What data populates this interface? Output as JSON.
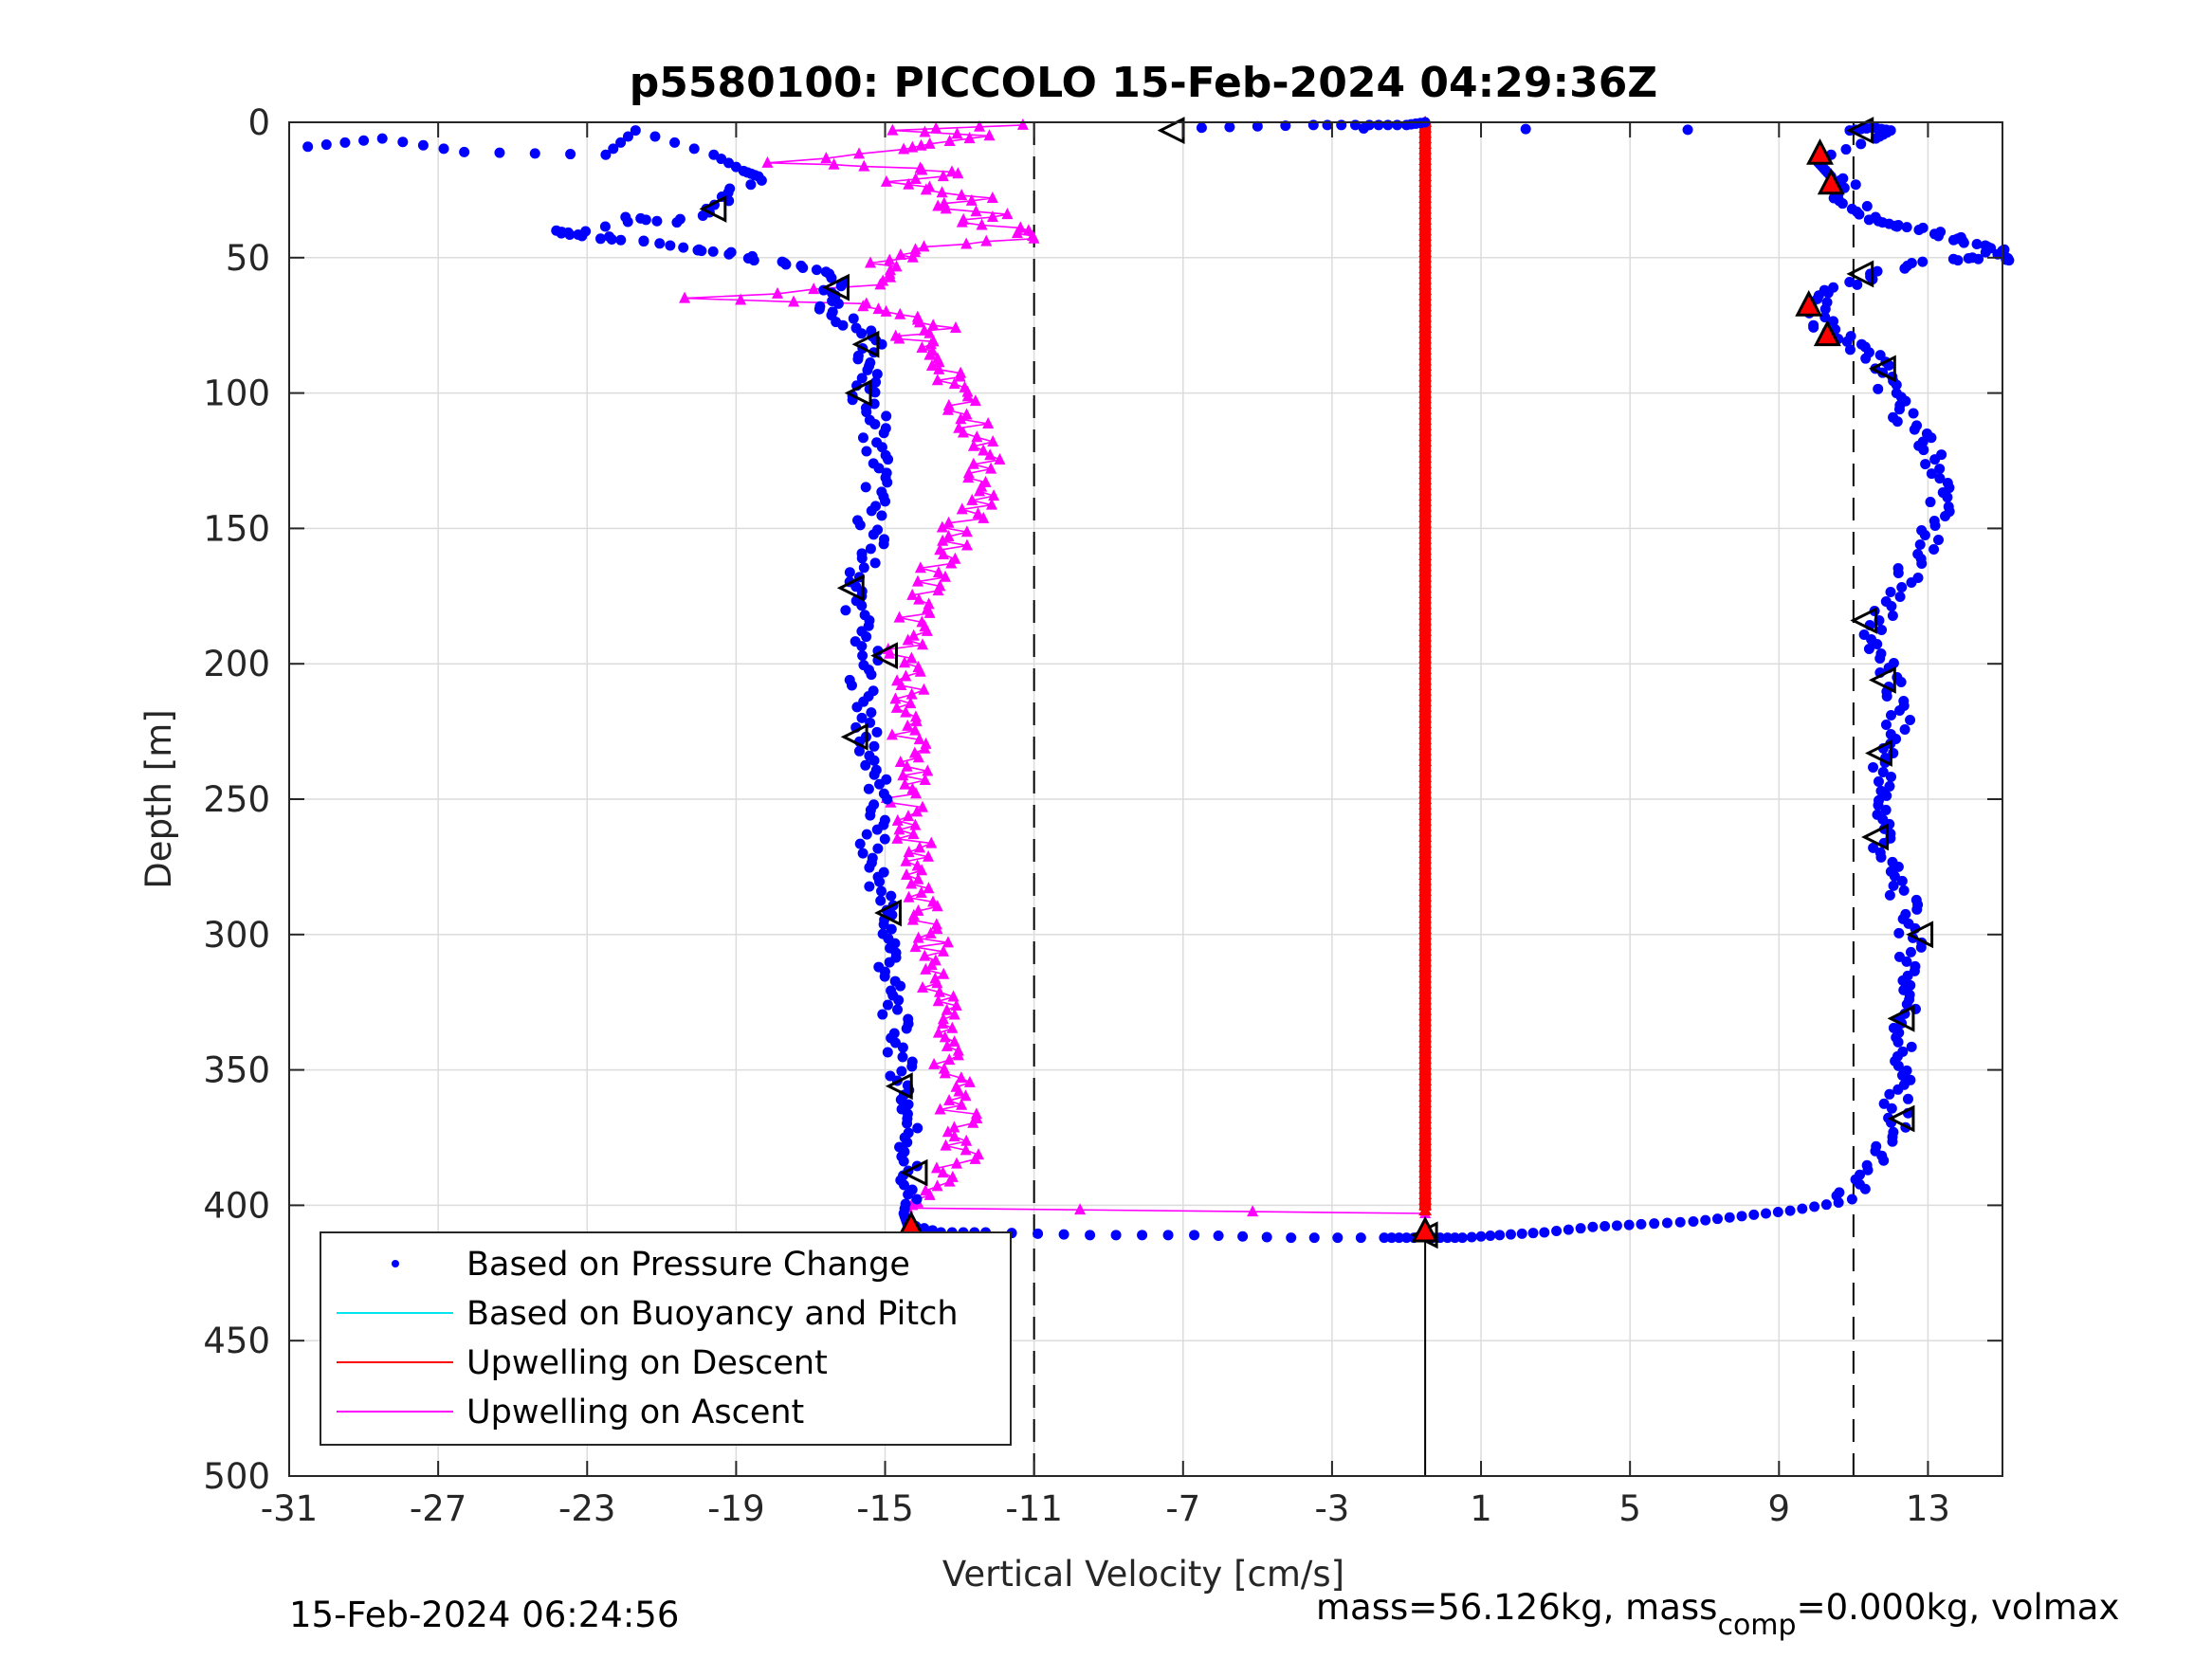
{
  "figure": {
    "footer_left": "15-Feb-2024 06:24:56",
    "footer_right_main": "mass=56.126kg, mass",
    "footer_right_sub": "comp",
    "footer_right_tail": "=0.000kg, volmax"
  },
  "chart_data": {
    "type": "scatter",
    "title": "p5580100: PICCOLO 15-Feb-2024 04:29:36Z",
    "xlabel": "Vertical Velocity [cm/s]",
    "ylabel": "Depth [m]",
    "xlim": [
      -31,
      15
    ],
    "ylim": [
      500,
      0
    ],
    "y_reversed": true,
    "xticks": [
      "-31",
      "-27",
      "-23",
      "-19",
      "-15",
      "-11",
      "-7",
      "-3",
      "1",
      "5",
      "9",
      "13"
    ],
    "yticks": [
      "0",
      "50",
      "100",
      "150",
      "200",
      "250",
      "300",
      "350",
      "400",
      "450",
      "500"
    ],
    "grid": true,
    "legend_position": "bottom-left",
    "legend": [
      {
        "label": "Based on Pressure Change",
        "style": "dot",
        "color": "#0000ff"
      },
      {
        "label": "Based on Buoyancy and Pitch",
        "style": "line",
        "color": "#00e5ee"
      },
      {
        "label": "Upwelling on Descent",
        "style": "line",
        "color": "#ff0000"
      },
      {
        "label": "Upwelling on Ascent",
        "style": "line",
        "color": "#ff00ff"
      }
    ],
    "reference_lines": {
      "dashed_x": [
        -11,
        11
      ],
      "solid_x": [
        -0.5
      ],
      "solid_x_depth_range": [
        400,
        500
      ]
    },
    "series": [
      {
        "name": "Based on Pressure Change",
        "color": "#0000ff",
        "marker": "dot",
        "ascent_profile": [
          [
            -30.5,
            9
          ],
          [
            -28.5,
            6
          ],
          [
            -26.3,
            11
          ],
          [
            -22.5,
            12
          ],
          [
            -21.7,
            3
          ],
          [
            -19.6,
            12
          ],
          [
            -18.8,
            18
          ],
          [
            -18.4,
            20
          ],
          [
            -19.4,
            26
          ],
          [
            -19.6,
            32
          ],
          [
            -20.6,
            37
          ],
          [
            -21.7,
            35
          ],
          [
            -23.4,
            42
          ],
          [
            -23.6,
            40
          ],
          [
            -22.3,
            43
          ],
          [
            -21.3,
            44
          ],
          [
            -20,
            47
          ],
          [
            -19.2,
            48
          ],
          [
            -18.2,
            51
          ],
          [
            -17.1,
            53
          ],
          [
            -16.4,
            56
          ],
          [
            -16.4,
            62
          ],
          [
            -16.6,
            66
          ],
          [
            -16.4,
            70
          ],
          [
            -15.9,
            75
          ],
          [
            -15.4,
            79
          ],
          [
            -15.4,
            85
          ],
          [
            -15.4,
            90
          ],
          [
            -15.6,
            96
          ],
          [
            -15.6,
            101
          ],
          [
            -15.3,
            107
          ],
          [
            -15.2,
            113
          ],
          [
            -15.3,
            120
          ],
          [
            -15.1,
            126
          ],
          [
            -15.2,
            133
          ],
          [
            -15.3,
            140
          ],
          [
            -15.4,
            147
          ],
          [
            -15.3,
            154
          ],
          [
            -15.5,
            161
          ],
          [
            -15.7,
            168
          ],
          [
            -15.8,
            175
          ],
          [
            -15.7,
            182
          ],
          [
            -15.6,
            190
          ],
          [
            -15.5,
            197
          ],
          [
            -15.6,
            204
          ],
          [
            -15.6,
            212
          ],
          [
            -15.4,
            220
          ],
          [
            -15.6,
            227
          ],
          [
            -15.4,
            234
          ],
          [
            -15.2,
            241
          ],
          [
            -15.3,
            248
          ],
          [
            -15.2,
            256
          ],
          [
            -15.3,
            263
          ],
          [
            -15.5,
            270
          ],
          [
            -15.2,
            277
          ],
          [
            -15.1,
            284
          ],
          [
            -15,
            291
          ],
          [
            -14.9,
            298
          ],
          [
            -14.8,
            305
          ],
          [
            -14.9,
            312
          ],
          [
            -14.9,
            319
          ],
          [
            -14.8,
            326
          ],
          [
            -14.7,
            333
          ],
          [
            -14.6,
            340
          ],
          [
            -14.6,
            347
          ],
          [
            -14.5,
            354
          ],
          [
            -14.4,
            361
          ],
          [
            -14.4,
            368
          ],
          [
            -14.3,
            375
          ],
          [
            -14.4,
            382
          ],
          [
            -14.4,
            389
          ],
          [
            -14.4,
            396
          ],
          [
            -14.5,
            403
          ],
          [
            -14.4,
            407
          ],
          [
            -13.5,
            410
          ],
          [
            -12.3,
            410
          ],
          [
            -9.5,
            411
          ],
          [
            -6.7,
            411
          ],
          [
            -4.1,
            412
          ],
          [
            -1.6,
            412
          ],
          [
            -0.8,
            412
          ]
        ],
        "descent_profile": [
          [
            -0.5,
            0
          ],
          [
            -1,
            1
          ],
          [
            -2,
            1
          ],
          [
            -3.5,
            1
          ],
          [
            -6.5,
            2
          ],
          [
            10.9,
            3
          ],
          [
            11.5,
            2
          ],
          [
            12,
            3
          ],
          [
            11.6,
            6
          ],
          [
            10,
            14
          ],
          [
            10.2,
            17
          ],
          [
            10.4,
            20
          ],
          [
            10.8,
            23
          ],
          [
            10.7,
            28
          ],
          [
            11.3,
            32
          ],
          [
            11.6,
            36
          ],
          [
            12.2,
            38
          ],
          [
            12.8,
            39
          ],
          [
            13.6,
            42
          ],
          [
            14.1,
            44
          ],
          [
            14.7,
            46
          ],
          [
            14.8,
            48
          ],
          [
            15,
            51
          ],
          [
            14.2,
            50
          ],
          [
            12.8,
            52
          ],
          [
            11.4,
            56
          ],
          [
            11,
            60
          ],
          [
            10.1,
            64
          ],
          [
            9.9,
            69
          ],
          [
            10.2,
            75
          ],
          [
            10.5,
            78
          ],
          [
            11,
            82
          ],
          [
            11.5,
            86
          ],
          [
            11.8,
            91
          ],
          [
            11.9,
            97
          ],
          [
            12.1,
            103
          ],
          [
            12.4,
            109
          ],
          [
            12.7,
            115
          ],
          [
            13,
            121
          ],
          [
            13.3,
            128
          ],
          [
            13.4,
            135
          ],
          [
            13.4,
            142
          ],
          [
            13.1,
            149
          ],
          [
            12.9,
            156
          ],
          [
            12.6,
            163
          ],
          [
            12.4,
            170
          ],
          [
            12.1,
            177
          ],
          [
            11.6,
            184
          ],
          [
            11.5,
            191
          ],
          [
            11.8,
            198
          ],
          [
            11.9,
            205
          ],
          [
            12.1,
            212
          ],
          [
            12.2,
            219
          ],
          [
            12.1,
            226
          ],
          [
            11.9,
            233
          ],
          [
            11.8,
            240
          ],
          [
            11.7,
            247
          ],
          [
            11.8,
            254
          ],
          [
            11.9,
            261
          ],
          [
            11.8,
            268
          ],
          [
            11.9,
            275
          ],
          [
            12.2,
            282
          ],
          [
            12.4,
            289
          ],
          [
            12.6,
            296
          ],
          [
            12.5,
            303
          ],
          [
            12.6,
            310
          ],
          [
            12.5,
            317
          ],
          [
            12.5,
            324
          ],
          [
            12.4,
            331
          ],
          [
            12.3,
            338
          ],
          [
            12.3,
            345
          ],
          [
            12.3,
            352
          ],
          [
            12.1,
            359
          ],
          [
            12.2,
            366
          ],
          [
            12.1,
            373
          ],
          [
            11.7,
            380
          ],
          [
            11.3,
            387
          ],
          [
            11,
            394
          ],
          [
            10.6,
            399
          ],
          [
            9.3,
            402
          ],
          [
            8,
            404
          ],
          [
            6.7,
            406
          ],
          [
            5.3,
            407
          ],
          [
            4,
            408
          ],
          [
            2.7,
            410
          ],
          [
            1.5,
            411
          ],
          [
            0.5,
            412
          ],
          [
            -0.3,
            412
          ]
        ]
      },
      {
        "name": "Upwelling on Descent",
        "color": "#ff0000",
        "marker": "triangle",
        "x": -0.5,
        "depth_range": [
          0,
          402
        ]
      },
      {
        "name": "Upwelling on Ascent",
        "color": "#ff00ff",
        "marker": "triangle",
        "profile": [
          [
            -11.3,
            1
          ],
          [
            -14.8,
            3
          ],
          [
            -12.2,
            5
          ],
          [
            -13.8,
            8
          ],
          [
            -14.5,
            10
          ],
          [
            -18.1,
            15
          ],
          [
            -14.2,
            17
          ],
          [
            -13.1,
            19
          ],
          [
            -14.6,
            22
          ],
          [
            -13.4,
            25
          ],
          [
            -12.6,
            28
          ],
          [
            -13.5,
            31
          ],
          [
            -12.2,
            34
          ],
          [
            -13.2,
            37
          ],
          [
            -11.1,
            40
          ],
          [
            -11.3,
            43
          ],
          [
            -13.6,
            46
          ],
          [
            -14.2,
            49
          ],
          [
            -15.3,
            52
          ],
          [
            -14.6,
            56
          ],
          [
            -14.8,
            60
          ],
          [
            -19.9,
            65
          ],
          [
            -15.6,
            67
          ],
          [
            -14.8,
            70
          ],
          [
            -13.8,
            73
          ],
          [
            -13.2,
            76
          ],
          [
            -14.4,
            79
          ],
          [
            -13.7,
            82
          ],
          [
            -13.4,
            86
          ],
          [
            -13.6,
            90
          ],
          [
            -13.3,
            94
          ],
          [
            -13.1,
            98
          ],
          [
            -13,
            103
          ],
          [
            -12.8,
            108
          ],
          [
            -12.6,
            113
          ],
          [
            -12.5,
            118
          ],
          [
            -12.4,
            123
          ],
          [
            -12.3,
            128
          ],
          [
            -12.3,
            133
          ],
          [
            -12.5,
            138
          ],
          [
            -12.7,
            143
          ],
          [
            -12.9,
            148
          ],
          [
            -13.1,
            153
          ],
          [
            -13.3,
            158
          ],
          [
            -13.5,
            163
          ],
          [
            -13.7,
            168
          ],
          [
            -13.9,
            173
          ],
          [
            -14.1,
            178
          ],
          [
            -14.2,
            183
          ],
          [
            -14.3,
            188
          ],
          [
            -14.4,
            193
          ],
          [
            -14.5,
            198
          ],
          [
            -14.5,
            203
          ],
          [
            -14.4,
            208
          ],
          [
            -14.3,
            213
          ],
          [
            -14.4,
            218
          ],
          [
            -14.4,
            223
          ],
          [
            -14.3,
            228
          ],
          [
            -14.2,
            233
          ],
          [
            -14.3,
            238
          ],
          [
            -14.4,
            243
          ],
          [
            -14.5,
            248
          ],
          [
            -14.4,
            253
          ],
          [
            -14.3,
            258
          ],
          [
            -14.3,
            263
          ],
          [
            -14.2,
            268
          ],
          [
            -14.1,
            273
          ],
          [
            -14.1,
            278
          ],
          [
            -14.2,
            283
          ],
          [
            -14.1,
            288
          ],
          [
            -14,
            293
          ],
          [
            -13.9,
            298
          ],
          [
            -13.8,
            303
          ],
          [
            -13.8,
            308
          ],
          [
            -13.7,
            313
          ],
          [
            -13.6,
            318
          ],
          [
            -13.5,
            323
          ],
          [
            -13.4,
            328
          ],
          [
            -13.3,
            333
          ],
          [
            -13.3,
            338
          ],
          [
            -13.2,
            343
          ],
          [
            -13.3,
            348
          ],
          [
            -13.2,
            353
          ],
          [
            -13.1,
            358
          ],
          [
            -13.1,
            363
          ],
          [
            -13,
            368
          ],
          [
            -13,
            373
          ],
          [
            -12.9,
            378
          ],
          [
            -13,
            383
          ],
          [
            -13.2,
            388
          ],
          [
            -13.5,
            393
          ],
          [
            -14,
            398
          ],
          [
            -14.4,
            401
          ],
          [
            -0.5,
            403
          ]
        ]
      }
    ],
    "markers": {
      "open_triangles": [
        [
          -7.3,
          3
        ],
        [
          11.2,
          3
        ],
        [
          -19.6,
          32
        ],
        [
          11.2,
          56
        ],
        [
          -16.3,
          61
        ],
        [
          -15.5,
          82
        ],
        [
          11.8,
          91
        ],
        [
          -15.7,
          100
        ],
        [
          -15.9,
          172
        ],
        [
          11.3,
          184
        ],
        [
          -15,
          197
        ],
        [
          11.8,
          206
        ],
        [
          -15.8,
          227
        ],
        [
          11.7,
          233
        ],
        [
          11.6,
          264
        ],
        [
          -14.9,
          292
        ],
        [
          12.8,
          300
        ],
        [
          12.3,
          331
        ],
        [
          -14.6,
          356
        ],
        [
          12.3,
          368
        ],
        [
          -14.2,
          388
        ],
        [
          -0.5,
          411
        ]
      ],
      "red_filled_triangles": [
        [
          10.1,
          12
        ],
        [
          10.4,
          23
        ],
        [
          9.8,
          68
        ],
        [
          10.3,
          79
        ],
        [
          -14.3,
          408
        ],
        [
          -0.5,
          410
        ]
      ]
    }
  }
}
